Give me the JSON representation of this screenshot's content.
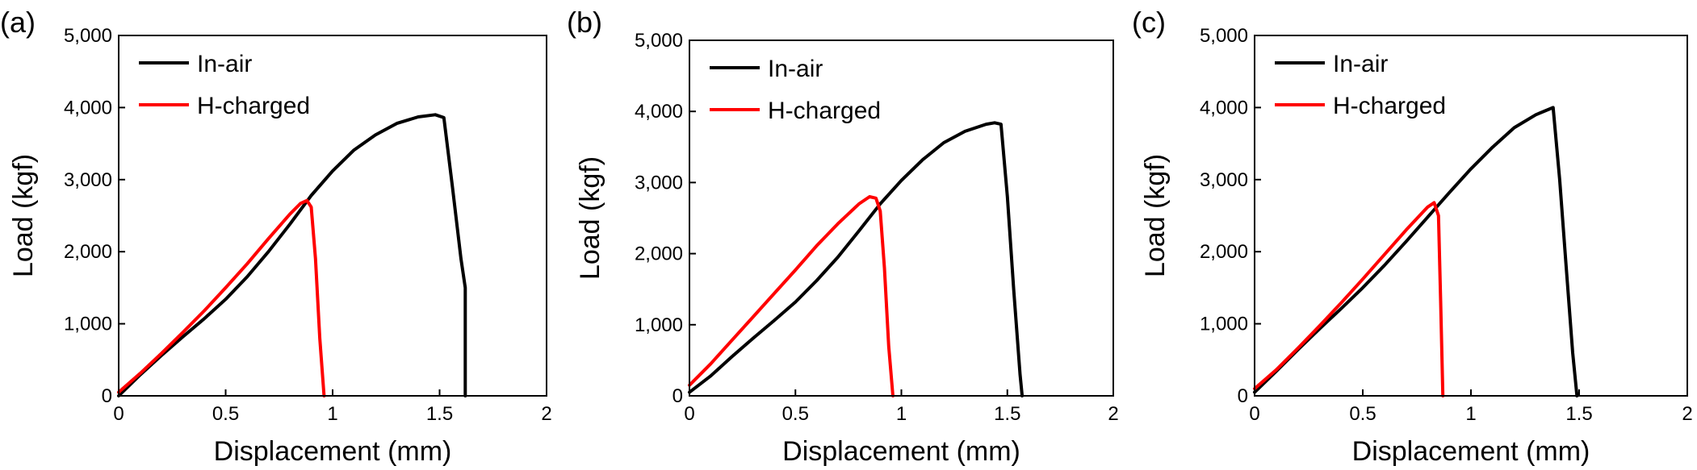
{
  "chart_data": [
    {
      "type": "line",
      "panel_label": "(a)",
      "xlabel": "Displacement (mm)",
      "ylabel": "Load (kgf)",
      "xlim": [
        0,
        2
      ],
      "ylim": [
        0,
        5000
      ],
      "x_ticks": [
        0,
        0.5,
        1,
        1.5,
        2
      ],
      "x_tick_labels": [
        "0",
        "0.5",
        "1",
        "1.5",
        "2"
      ],
      "y_ticks": [
        0,
        1000,
        2000,
        3000,
        4000,
        5000
      ],
      "y_tick_labels": [
        "0",
        "1,000",
        "2,000",
        "3,000",
        "4,000",
        "5,000"
      ],
      "legend_position": "top-left",
      "series": [
        {
          "name": "In-air",
          "color": "#000000",
          "x": [
            0,
            0.1,
            0.2,
            0.3,
            0.4,
            0.5,
            0.6,
            0.7,
            0.8,
            0.9,
            1.0,
            1.1,
            1.2,
            1.3,
            1.4,
            1.48,
            1.52,
            1.56,
            1.6,
            1.62,
            1.62,
            1.62
          ],
          "y": [
            0,
            290,
            560,
            820,
            1070,
            1340,
            1650,
            2000,
            2380,
            2780,
            3120,
            3410,
            3620,
            3780,
            3870,
            3900,
            3860,
            2900,
            1900,
            1500,
            500,
            0
          ]
        },
        {
          "name": "H-charged",
          "color": "#ff0000",
          "x": [
            0,
            0.1,
            0.2,
            0.3,
            0.4,
            0.5,
            0.6,
            0.7,
            0.8,
            0.85,
            0.88,
            0.9,
            0.92,
            0.94,
            0.96
          ],
          "y": [
            50,
            310,
            590,
            880,
            1180,
            1500,
            1830,
            2180,
            2520,
            2670,
            2710,
            2620,
            1900,
            800,
            0
          ]
        }
      ]
    },
    {
      "type": "line",
      "panel_label": "(b)",
      "xlabel": "Displacement (mm)",
      "ylabel": "Load (kgf)",
      "xlim": [
        0,
        2
      ],
      "ylim": [
        0,
        5000
      ],
      "x_ticks": [
        0,
        0.5,
        1,
        1.5,
        2
      ],
      "x_tick_labels": [
        "0",
        "0.5",
        "1",
        "1.5",
        "2"
      ],
      "y_ticks": [
        0,
        1000,
        2000,
        3000,
        4000,
        5000
      ],
      "y_tick_labels": [
        "0",
        "1,000",
        "2,000",
        "3,000",
        "4,000",
        "5,000"
      ],
      "legend_position": "top-left",
      "series": [
        {
          "name": "In-air",
          "color": "#000000",
          "x": [
            0,
            0.1,
            0.2,
            0.3,
            0.4,
            0.5,
            0.6,
            0.7,
            0.8,
            0.9,
            1.0,
            1.1,
            1.2,
            1.3,
            1.4,
            1.44,
            1.47,
            1.5,
            1.53,
            1.56,
            1.57
          ],
          "y": [
            50,
            280,
            550,
            810,
            1060,
            1320,
            1620,
            1950,
            2320,
            2700,
            3030,
            3320,
            3560,
            3720,
            3820,
            3840,
            3820,
            2800,
            1500,
            300,
            0
          ]
        },
        {
          "name": "H-charged",
          "color": "#ff0000",
          "x": [
            0,
            0.1,
            0.2,
            0.3,
            0.4,
            0.5,
            0.6,
            0.7,
            0.8,
            0.85,
            0.88,
            0.9,
            0.92,
            0.94,
            0.96
          ],
          "y": [
            150,
            450,
            780,
            1110,
            1440,
            1770,
            2110,
            2420,
            2700,
            2800,
            2780,
            2600,
            1800,
            700,
            0
          ]
        }
      ]
    },
    {
      "type": "line",
      "panel_label": "(c)",
      "xlabel": "Displacement (mm)",
      "ylabel": "Load (kgf)",
      "xlim": [
        0,
        2
      ],
      "ylim": [
        0,
        5000
      ],
      "x_ticks": [
        0,
        0.5,
        1,
        1.5,
        2
      ],
      "x_tick_labels": [
        "0",
        "0.5",
        "1",
        "1.5",
        "2"
      ],
      "y_ticks": [
        0,
        1000,
        2000,
        3000,
        4000,
        5000
      ],
      "y_tick_labels": [
        "0",
        "1,000",
        "2,000",
        "3,000",
        "4,000",
        "5,000"
      ],
      "legend_position": "top-left",
      "series": [
        {
          "name": "In-air",
          "color": "#000000",
          "x": [
            0,
            0.1,
            0.2,
            0.3,
            0.4,
            0.5,
            0.6,
            0.7,
            0.8,
            0.9,
            1.0,
            1.1,
            1.2,
            1.3,
            1.38,
            1.41,
            1.44,
            1.47,
            1.49
          ],
          "y": [
            50,
            340,
            640,
            930,
            1210,
            1500,
            1810,
            2140,
            2480,
            2820,
            3150,
            3450,
            3720,
            3900,
            4000,
            3000,
            1800,
            600,
            0
          ]
        },
        {
          "name": "H-charged",
          "color": "#ff0000",
          "x": [
            0,
            0.1,
            0.2,
            0.3,
            0.4,
            0.5,
            0.6,
            0.7,
            0.8,
            0.83,
            0.85,
            0.86,
            0.87
          ],
          "y": [
            100,
            360,
            660,
            970,
            1290,
            1620,
            1960,
            2300,
            2620,
            2680,
            2500,
            1300,
            0
          ]
        }
      ]
    }
  ]
}
